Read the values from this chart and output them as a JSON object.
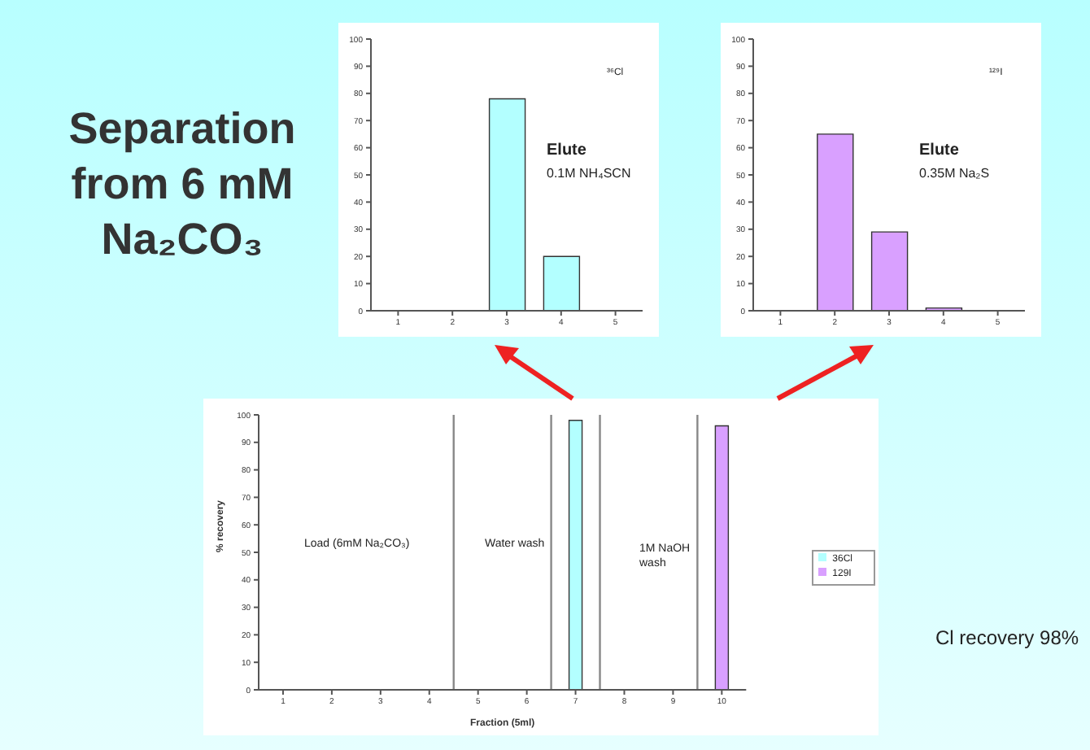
{
  "chart_data": [
    {
      "type": "bar",
      "categories": [
        "1",
        "2",
        "3",
        "4",
        "5"
      ],
      "values": [
        0,
        0,
        78,
        20,
        0
      ],
      "color": "#b3ffff",
      "ylim": [
        0,
        100
      ],
      "yticks": [
        0,
        10,
        20,
        30,
        40,
        50,
        60,
        70,
        80,
        90,
        100
      ],
      "grid": false,
      "legend": false,
      "annotations": [
        "³⁶Cl",
        "Elute",
        "0.1M NH₄SCN"
      ]
    },
    {
      "type": "bar",
      "categories": [
        "1",
        "2",
        "3",
        "4",
        "5"
      ],
      "values": [
        0,
        65,
        29,
        1,
        null
      ],
      "color": "#d9a0ff",
      "ylim": [
        0,
        100
      ],
      "yticks": [
        0,
        10,
        20,
        30,
        40,
        50,
        60,
        70,
        80,
        90,
        100
      ],
      "grid": false,
      "legend": false,
      "annotations": [
        "¹²⁹I",
        "Elute",
        "0.35M Na₂S"
      ]
    },
    {
      "type": "bar",
      "title": "Separation from 6 mM Na₂CO₃",
      "xlabel": "Fraction (5ml)",
      "ylabel": "% recovery",
      "x": [
        1,
        2,
        3,
        4,
        5,
        6,
        7,
        8,
        9,
        10
      ],
      "series": [
        {
          "name": "36Cl",
          "color": "#b3ffff",
          "values": [
            0,
            0,
            0,
            0,
            null,
            null,
            98,
            0,
            0,
            0
          ]
        },
        {
          "name": "129I",
          "color": "#d9a0ff",
          "values": [
            0,
            0,
            0,
            0,
            0,
            0,
            0,
            0,
            0,
            96
          ]
        }
      ],
      "xlim": [
        0.5,
        10.5
      ],
      "xticks": [
        1,
        2,
        3,
        4,
        5,
        6,
        7,
        8,
        9,
        10
      ],
      "ylim": [
        0,
        100
      ],
      "yticks": [
        0,
        10,
        20,
        30,
        40,
        50,
        60,
        70,
        80,
        90,
        100
      ],
      "grid": false,
      "legend": "right",
      "ref_lines": [
        {
          "axis": "x",
          "value": 4.5,
          "color": "#888888"
        },
        {
          "axis": "x",
          "value": 6.5,
          "color": "#888888"
        },
        {
          "axis": "x",
          "value": 7.5,
          "color": "#888888"
        },
        {
          "axis": "x",
          "value": 9.5,
          "color": "#888888"
        }
      ],
      "annotations": [
        "Load (6mM Na₂CO₃)",
        "Water wash",
        "1M NaOH wash",
        "Cl recovery 98%"
      ]
    }
  ]
}
